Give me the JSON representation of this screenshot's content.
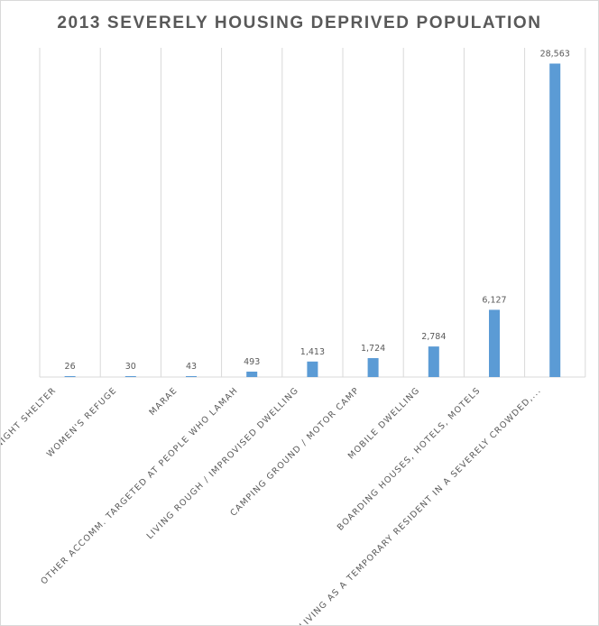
{
  "chart_data": {
    "type": "bar",
    "title": "2013 SEVERELY HOUSING DEPRIVED POPULATION",
    "categories": [
      "NIGHT SHELTER",
      "WOMEN'S REFUGE",
      "MARAE",
      "OTHER ACCOMM. TARGETED AT PEOPLE WHO LAMAH",
      "LIVING ROUGH / IMPROVISED DWELLING",
      "CAMPING GROUND / MOTOR CAMP",
      "MOBILE DWELLING",
      "BOARDING HOUSES, HOTELS, MOTELS",
      "LIVING AS A TEMPORARY RESIDENT IN A SEVERELY CROWDED,..."
    ],
    "values": [
      26,
      30,
      43,
      493,
      1413,
      1724,
      2784,
      6127,
      28563
    ],
    "data_labels": [
      "26",
      "30",
      "43",
      "493",
      "1,413",
      "1,724",
      "2,784",
      "6,127",
      "28,563"
    ],
    "xlabel": "",
    "ylabel": "",
    "ylim": [
      0,
      30000
    ],
    "grid": "vertical",
    "bar_color": "#5b9bd5"
  }
}
